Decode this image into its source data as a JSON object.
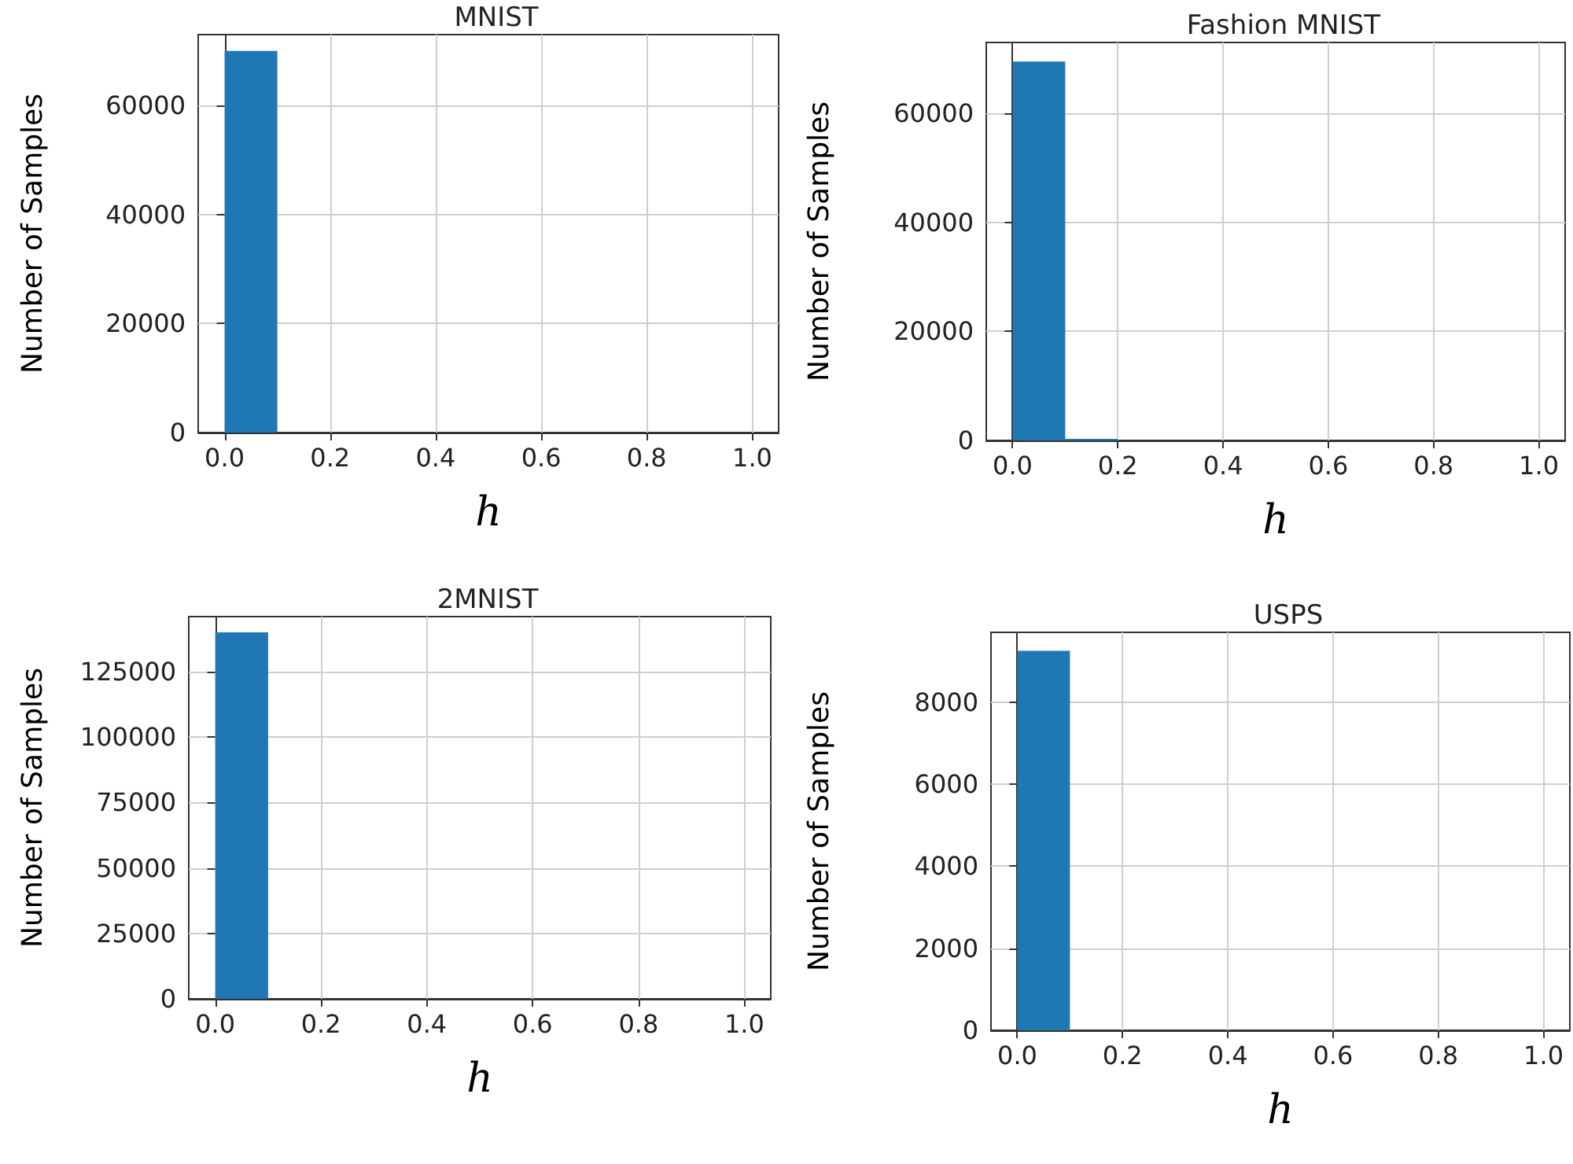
{
  "chart_data": [
    {
      "type": "histogram",
      "title": "MNIST",
      "xlabel": "h",
      "ylabel": "Number of Samples",
      "bins": [
        0,
        0.1,
        0.2,
        0.3,
        0.4,
        0.5,
        0.6,
        0.7,
        0.8,
        0.9,
        1.0
      ],
      "values": [
        70000,
        0,
        0,
        0,
        0,
        0,
        0,
        0,
        0,
        0
      ],
      "color": "#1f77b4",
      "xlim": [
        -0.05,
        1.05
      ],
      "ylim": [
        0,
        73000
      ],
      "xticks": [
        {
          "value": 0,
          "label": "0.0"
        },
        {
          "value": 0.2,
          "label": "0.2"
        },
        {
          "value": 0.4,
          "label": "0.4"
        },
        {
          "value": 0.6,
          "label": "0.6"
        },
        {
          "value": 0.8,
          "label": "0.8"
        },
        {
          "value": 1,
          "label": "1.0"
        }
      ],
      "yticks": [
        0,
        20000,
        40000,
        60000
      ],
      "grid": true
    },
    {
      "type": "histogram",
      "title": "Fashion MNIST",
      "xlabel": "h",
      "ylabel": "Number of Samples",
      "bins": [
        0,
        0.1,
        0.2,
        0.3,
        0.4,
        0.5,
        0.6,
        0.7,
        0.8,
        0.9,
        1.0
      ],
      "values": [
        69500,
        300,
        0,
        0,
        0,
        0,
        0,
        0,
        0,
        0
      ],
      "color": "#1f77b4",
      "xlim": [
        -0.05,
        1.05
      ],
      "ylim": [
        0,
        73000
      ],
      "xticks": [
        {
          "value": 0,
          "label": "0.0"
        },
        {
          "value": 0.2,
          "label": "0.2"
        },
        {
          "value": 0.4,
          "label": "0.4"
        },
        {
          "value": 0.6,
          "label": "0.6"
        },
        {
          "value": 0.8,
          "label": "0.8"
        },
        {
          "value": 1,
          "label": "1.0"
        }
      ],
      "yticks": [
        0,
        20000,
        40000,
        60000
      ],
      "grid": true
    },
    {
      "type": "histogram",
      "title": "2MNIST",
      "xlabel": "h",
      "ylabel": "Number of Samples",
      "bins": [
        0,
        0.1,
        0.2,
        0.3,
        0.4,
        0.5,
        0.6,
        0.7,
        0.8,
        0.9,
        1.0
      ],
      "values": [
        140000,
        0,
        0,
        0,
        0,
        0,
        0,
        0,
        0,
        0
      ],
      "color": "#1f77b4",
      "xlim": [
        -0.05,
        1.05
      ],
      "ylim": [
        0,
        146000
      ],
      "xticks": [
        {
          "value": 0,
          "label": "0.0"
        },
        {
          "value": 0.2,
          "label": "0.2"
        },
        {
          "value": 0.4,
          "label": "0.4"
        },
        {
          "value": 0.6,
          "label": "0.6"
        },
        {
          "value": 0.8,
          "label": "0.8"
        },
        {
          "value": 1,
          "label": "1.0"
        }
      ],
      "yticks": [
        0,
        25000,
        50000,
        75000,
        100000,
        125000
      ],
      "grid": true
    },
    {
      "type": "histogram",
      "title": "USPS",
      "xlabel": "h",
      "ylabel": "Number of Samples",
      "bins": [
        0,
        0.1,
        0.2,
        0.3,
        0.4,
        0.5,
        0.6,
        0.7,
        0.8,
        0.9,
        1.0
      ],
      "values": [
        9250,
        0,
        0,
        0,
        0,
        0,
        0,
        0,
        0,
        0
      ],
      "color": "#1f77b4",
      "xlim": [
        -0.05,
        1.05
      ],
      "ylim": [
        0,
        9700
      ],
      "xticks": [
        {
          "value": 0,
          "label": "0.0"
        },
        {
          "value": 0.2,
          "label": "0.2"
        },
        {
          "value": 0.4,
          "label": "0.4"
        },
        {
          "value": 0.6,
          "label": "0.6"
        },
        {
          "value": 0.8,
          "label": "0.8"
        },
        {
          "value": 1,
          "label": "1.0"
        }
      ],
      "yticks": [
        0,
        2000,
        4000,
        6000,
        8000
      ],
      "grid": true
    }
  ]
}
